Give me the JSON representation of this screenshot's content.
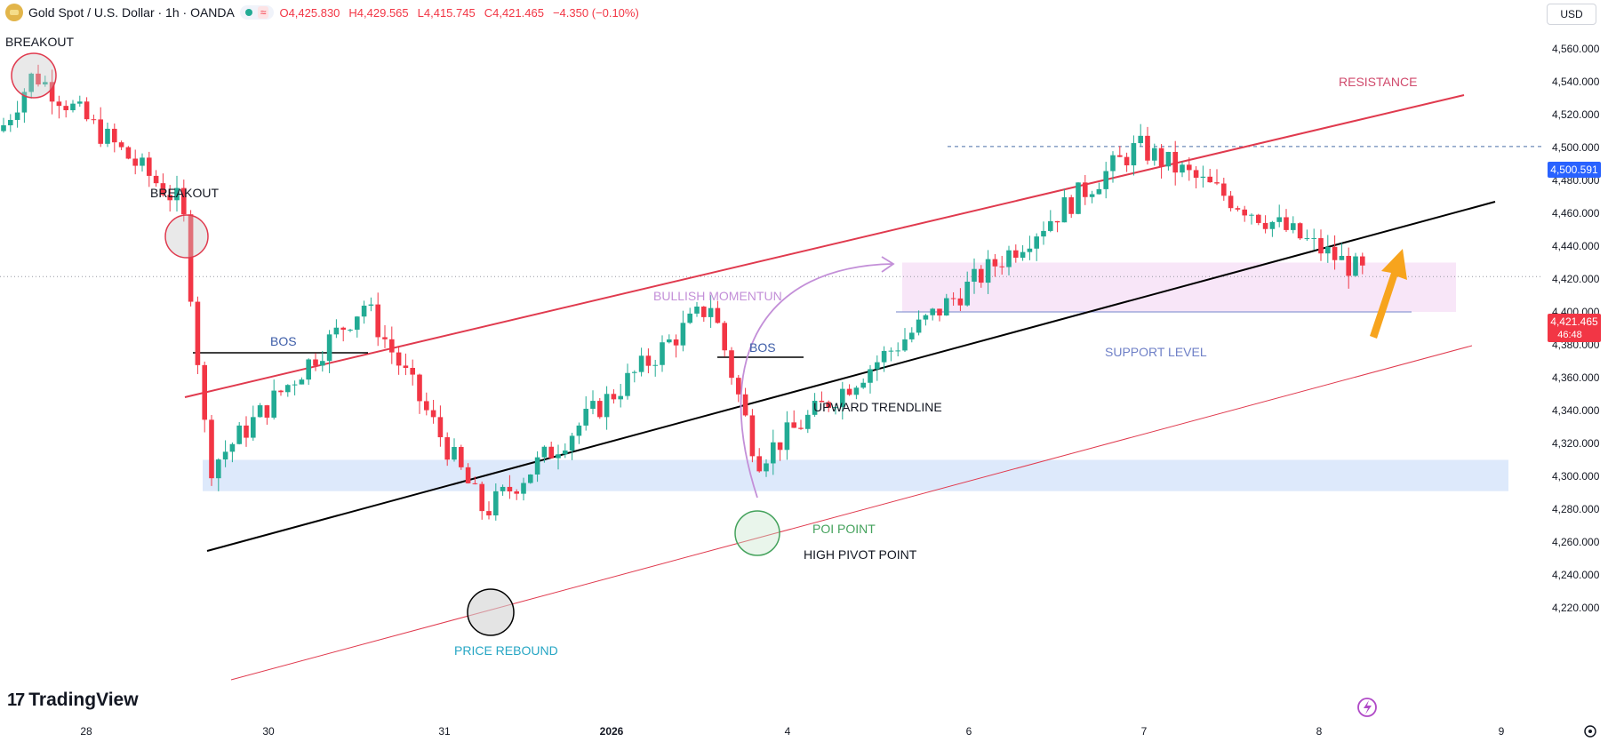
{
  "header": {
    "symbol": "Gold Spot / U.S. Dollar · 1h · OANDA",
    "open": "O4,425.830",
    "high": "H4,429.565",
    "low": "L4,415.745",
    "close": "C4,421.465",
    "change": "−4.350 (−0.10%)",
    "status_wave_icon": "≈"
  },
  "currency_label": "USD",
  "brand": {
    "name": "TradingView",
    "mark": "17"
  },
  "colors": {
    "up": "#22ab94",
    "down": "#f23645",
    "resistance": "#e03a4e",
    "trendline": "#000000",
    "support_zone": "#f8e6f8",
    "pivot_zone": "#dde9fb",
    "annotation_purple": "#c38fd8",
    "arrow_orange": "#f7a41d",
    "poi_green": "#44a25c",
    "rebound_teal": "#26a6c4",
    "axis_badge_blue": "#2962ff"
  },
  "annotations": {
    "breakout1": "BREAKOUT",
    "breakout2": "BREAKOUT",
    "bos1": "BOS",
    "bos2": "BOS",
    "bullish_momentum": "BULLISH MOMENTUN",
    "upward_trendline": "UPWARD TRENDLINE",
    "resistance": "RESISTANCE",
    "support_level": "SUPPORT LEVEL",
    "poi_point": "POI POINT",
    "high_pivot_point": "HIGH PIVOT POINT",
    "price_rebound": "PRICE REBOUND"
  },
  "price_badges": {
    "high_line": "4,500.591",
    "current_price": "4,421.465",
    "countdown": "46:48"
  },
  "chart_data": {
    "type": "candlestick",
    "title": "Gold Spot / U.S. Dollar · 1h · OANDA",
    "x_ticks": [
      "28",
      "30",
      "31",
      "2026",
      "4",
      "6",
      "7",
      "8",
      "9"
    ],
    "y_ticks": [
      "4,560.000",
      "4,540.000",
      "4,520.000",
      "4,500.000",
      "4,480.000",
      "4,460.000",
      "4,440.000",
      "4,420.000",
      "4,400.000",
      "4,380.000",
      "4,360.000",
      "4,340.000",
      "4,320.000",
      "4,300.000",
      "4,280.000",
      "4,260.000",
      "4,240.000",
      "4,220.000"
    ],
    "ylim": [
      4214,
      4566
    ],
    "key_points": [
      {
        "segment": "start",
        "close": 4510
      },
      {
        "segment": "breakout_peak",
        "close": 4545
      },
      {
        "segment": "second_breakout",
        "close": 4465
      },
      {
        "segment": "drop_low",
        "close": 4305
      },
      {
        "segment": "bos_high",
        "close": 4405
      },
      {
        "segment": "price_rebound_low",
        "close": 4278
      },
      {
        "segment": "bos2_high",
        "close": 4405
      },
      {
        "segment": "poi_low",
        "close": 4310
      },
      {
        "segment": "high",
        "close": 4500.591
      },
      {
        "segment": "current",
        "close": 4421.465
      }
    ],
    "levels": {
      "high_dashed": 4500.591,
      "current_dotted": 4421.465,
      "support_zone": [
        4400,
        4430
      ],
      "pivot_zone": [
        4291,
        4310
      ]
    },
    "grid": false
  }
}
